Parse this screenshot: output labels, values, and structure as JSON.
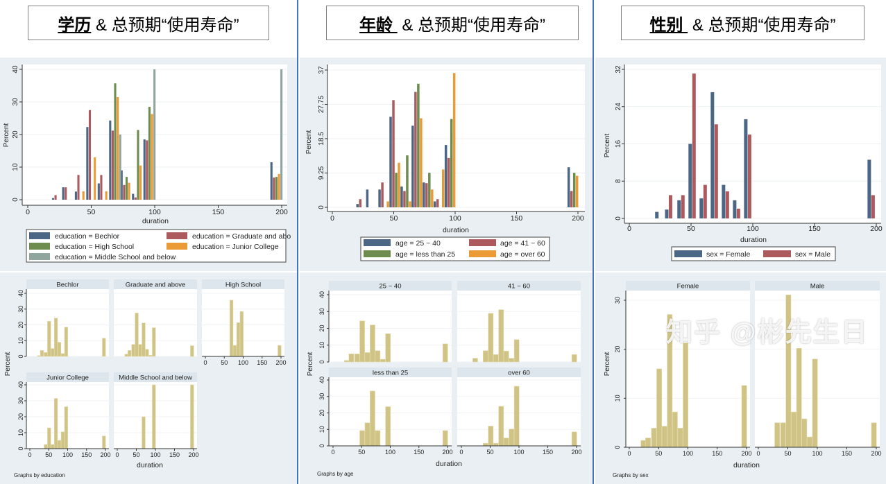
{
  "sections": [
    {
      "bold": "学历",
      "rest": " & 总预期“使用寿命”"
    },
    {
      "bold": "年龄 ",
      "rest": " & 总预期“使用寿命”"
    },
    {
      "bold": "性别 ",
      "rest": " & 总预期“使用寿命”"
    }
  ],
  "watermark": "知乎 @彬先生日",
  "colors": {
    "s1": "#4b6785",
    "s2": "#ad5a5f",
    "s3": "#6e8c4e",
    "s4": "#eb9b35",
    "s5": "#8fa59d",
    "hist": "#cfc386",
    "panel_bg": "#e9eff2",
    "strip": "#dce6ec",
    "divider": "#4472c4"
  },
  "chart_data": [
    {
      "type": "bar",
      "title": "",
      "xlabel": "duration",
      "ylabel": "Percent",
      "xlim": [
        0,
        200
      ],
      "xticks": [
        0,
        50,
        100,
        150,
        200
      ],
      "ylim": [
        0,
        40
      ],
      "yticks": [
        "0",
        "10",
        "20",
        "30",
        "40"
      ],
      "bins": [
        24,
        32,
        42,
        51,
        60,
        69,
        78,
        87,
        96,
        196
      ],
      "legend_position": "bottom",
      "series": [
        {
          "name": "education = Bechlor",
          "values": [
            0.5,
            3.8,
            2.5,
            22.3,
            5,
            24.3,
            9,
            1.8,
            18.5,
            11.5
          ]
        },
        {
          "name": "education = Graduate and abo",
          "values": [
            1.4,
            3.8,
            7.6,
            27.5,
            7.6,
            21.2,
            4.5,
            0.7,
            18.2,
            6.8
          ]
        },
        {
          "name": "education = High School",
          "values": [
            0,
            0,
            0,
            0,
            0,
            35.7,
            7,
            21.4,
            28.5,
            7
          ]
        },
        {
          "name": "education = Junior College",
          "values": [
            0,
            0,
            2.6,
            13,
            2.6,
            31.5,
            5.2,
            10.5,
            26.3,
            7.9
          ]
        },
        {
          "name": "education = Middle School and below",
          "values": [
            0,
            0,
            0,
            0,
            0,
            20,
            0,
            0,
            40,
            40
          ]
        }
      ]
    },
    {
      "type": "bar",
      "title": "",
      "xlabel": "duration",
      "ylabel": "Percent",
      "xlim": [
        0,
        200
      ],
      "xticks": [
        0,
        50,
        100,
        150,
        200
      ],
      "ylim": [
        0,
        37
      ],
      "yticks": [
        "0",
        "9.25",
        "18.5",
        "27.75",
        "37"
      ],
      "bins": [
        24,
        32,
        42,
        51,
        60,
        69,
        78,
        87,
        96,
        196
      ],
      "legend_position": "bottom",
      "series": [
        {
          "name": "age = 25 ~ 40",
          "values": [
            0.9,
            4.8,
            4.8,
            24.4,
            5.6,
            22,
            6.7,
            1.6,
            16.8,
            10.8
          ]
        },
        {
          "name": "age = 41 ~ 60",
          "values": [
            2.2,
            0,
            6.7,
            28.9,
            4.4,
            31.1,
            6.5,
            2.2,
            13.3,
            4.4
          ]
        },
        {
          "name": "age = less than 25",
          "values": [
            0,
            0,
            0,
            9.3,
            14,
            33.3,
            9.3,
            0,
            23.8,
            9.3
          ]
        },
        {
          "name": "age = over 60",
          "values": [
            0,
            0,
            1.6,
            12,
            1.6,
            24,
            4.8,
            10.2,
            36.2,
            8.5
          ]
        }
      ]
    },
    {
      "type": "bar",
      "title": "",
      "xlabel": "duration",
      "ylabel": "Percent",
      "xlim": [
        0,
        200
      ],
      "xticks": [
        0,
        50,
        100,
        150,
        200
      ],
      "ylim": [
        0,
        32
      ],
      "yticks": [
        "0",
        "8",
        "16",
        "24",
        "32"
      ],
      "bins": [
        24,
        32,
        42,
        51,
        60,
        69,
        78,
        87,
        96,
        196
      ],
      "legend_position": "bottom",
      "series": [
        {
          "name": "sex = Female",
          "values": [
            1.4,
            1.9,
            3.9,
            16,
            4.3,
            27.1,
            7.2,
            3.9,
            21.3,
            12.6
          ]
        },
        {
          "name": "sex = Male",
          "values": [
            0,
            5,
            5,
            31.1,
            7.2,
            20.2,
            5.8,
            2.1,
            18,
            5
          ]
        }
      ]
    },
    {
      "type": "bar",
      "xlabel": "duration",
      "ylabel": "Percent",
      "note": "Graphs by education",
      "xlim": [
        0,
        200
      ],
      "xticks": [
        0,
        50,
        100,
        150,
        200
      ],
      "ylim": [
        0,
        40
      ],
      "yticks": [
        "0",
        "10",
        "20",
        "30",
        "40"
      ],
      "bins": [
        24,
        32,
        42,
        51,
        60,
        69,
        78,
        87,
        96,
        196
      ],
      "panels": [
        {
          "title": "Bechlor",
          "values": [
            0.5,
            3.8,
            2.5,
            22.3,
            5,
            24.3,
            9,
            1.8,
            18.5,
            11.5
          ]
        },
        {
          "title": "Graduate and above",
          "values": [
            1.4,
            3.8,
            7.6,
            27.5,
            7.6,
            21.2,
            4.5,
            0.7,
            18.2,
            6.8
          ]
        },
        {
          "title": "High School",
          "values": [
            0,
            0,
            0,
            0,
            0,
            35.7,
            7,
            21.4,
            28.5,
            7
          ]
        },
        {
          "title": "Junior College",
          "values": [
            0,
            0,
            2.6,
            13,
            2.6,
            31.5,
            5.2,
            10.5,
            26.3,
            7.9
          ]
        },
        {
          "title": "Middle School and below",
          "values": [
            0,
            0,
            0,
            0,
            0,
            20,
            0,
            0,
            40,
            40
          ]
        }
      ]
    },
    {
      "type": "bar",
      "xlabel": "duration",
      "ylabel": "Percent",
      "note": "Graphs by age",
      "xlim": [
        0,
        200
      ],
      "xticks": [
        0,
        50,
        100,
        150,
        200
      ],
      "ylim": [
        0,
        40
      ],
      "yticks": [
        "0",
        "10",
        "20",
        "30",
        "40"
      ],
      "bins": [
        24,
        32,
        42,
        51,
        60,
        69,
        78,
        87,
        96,
        196
      ],
      "panels": [
        {
          "title": "25 ~ 40",
          "values": [
            0.9,
            4.8,
            4.8,
            24.4,
            5.6,
            22,
            6.7,
            1.6,
            16.8,
            10.8
          ]
        },
        {
          "title": "41 ~ 60",
          "values": [
            2.2,
            0,
            6.7,
            28.9,
            4.4,
            31.1,
            6.5,
            2.2,
            13.3,
            4.4
          ]
        },
        {
          "title": "less than 25",
          "values": [
            0,
            0,
            0,
            9.3,
            14,
            33.3,
            9.3,
            0,
            23.8,
            9.3
          ]
        },
        {
          "title": "over 60",
          "values": [
            0,
            0,
            1.6,
            12,
            1.6,
            24,
            4.8,
            10.2,
            36.2,
            8.5
          ]
        }
      ]
    },
    {
      "type": "bar",
      "xlabel": "duration",
      "ylabel": "Percent",
      "note": "Graphs by sex",
      "xlim": [
        0,
        200
      ],
      "xticks": [
        0,
        50,
        100,
        150,
        200
      ],
      "ylim": [
        0,
        30
      ],
      "yticks": [
        "0",
        "10",
        "20",
        "30"
      ],
      "bins": [
        24,
        32,
        42,
        51,
        60,
        69,
        78,
        87,
        96,
        196
      ],
      "panels": [
        {
          "title": "Female",
          "values": [
            1.4,
            1.9,
            3.9,
            16,
            4.3,
            27.1,
            7.2,
            3.9,
            21.3,
            12.6
          ]
        },
        {
          "title": "Male",
          "values": [
            0,
            5,
            5,
            31.1,
            7.2,
            20.2,
            5.8,
            2.1,
            18,
            5
          ]
        }
      ]
    }
  ]
}
